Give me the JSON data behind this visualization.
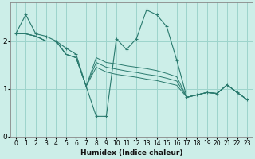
{
  "xlabel": "Humidex (Indice chaleur)",
  "bg_color": "#cceee8",
  "grid_color": "#9dd4cc",
  "line_color": "#2a7a6e",
  "xlim": [
    -0.5,
    23.5
  ],
  "ylim": [
    0,
    2.8
  ],
  "yticks": [
    0,
    1,
    2
  ],
  "xticks": [
    0,
    1,
    2,
    3,
    4,
    5,
    6,
    7,
    8,
    9,
    10,
    11,
    12,
    13,
    14,
    15,
    16,
    17,
    18,
    19,
    20,
    21,
    22,
    23
  ],
  "series_main": [
    2.15,
    2.55,
    2.15,
    2.1,
    2.0,
    1.85,
    1.72,
    1.05,
    0.42,
    0.42,
    2.05,
    1.82,
    2.05,
    2.65,
    2.55,
    2.3,
    1.6,
    0.82,
    0.87,
    0.92,
    0.9,
    1.08,
    0.92,
    0.77
  ],
  "series_trend": [
    [
      2.15,
      2.15,
      2.1,
      2.0,
      2.0,
      1.72,
      1.65,
      1.05,
      1.65,
      1.55,
      1.52,
      1.48,
      1.45,
      1.42,
      1.38,
      1.32,
      1.25,
      0.82,
      0.87,
      0.92,
      0.9,
      1.08,
      0.92,
      0.77
    ],
    [
      2.15,
      2.15,
      2.1,
      2.0,
      2.0,
      1.72,
      1.65,
      1.05,
      1.55,
      1.45,
      1.41,
      1.37,
      1.34,
      1.3,
      1.27,
      1.22,
      1.16,
      0.82,
      0.87,
      0.92,
      0.9,
      1.08,
      0.92,
      0.77
    ],
    [
      2.15,
      2.15,
      2.1,
      2.0,
      2.0,
      1.72,
      1.65,
      1.05,
      1.45,
      1.35,
      1.3,
      1.27,
      1.24,
      1.2,
      1.17,
      1.12,
      1.07,
      0.82,
      0.87,
      0.92,
      0.9,
      1.08,
      0.92,
      0.77
    ]
  ],
  "figsize": [
    3.2,
    2.0
  ],
  "dpi": 100
}
